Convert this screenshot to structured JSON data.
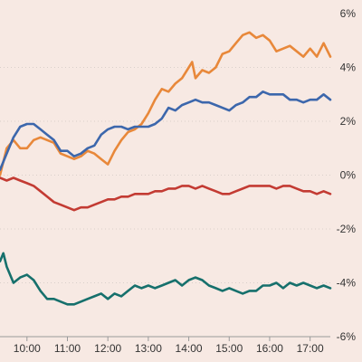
{
  "chart_data": {
    "type": "line",
    "title": "",
    "xlabel": "",
    "ylabel": "",
    "ylim": [
      -6,
      6
    ],
    "xlim": [
      "09:20",
      "17:30"
    ],
    "grid": true,
    "legend": "none",
    "y_ticks": [
      {
        "value": 6,
        "label": "6%"
      },
      {
        "value": 4,
        "label": "4%"
      },
      {
        "value": 2,
        "label": "2%"
      },
      {
        "value": 0,
        "label": "0%"
      },
      {
        "value": -2,
        "label": "-2%"
      },
      {
        "value": -4,
        "label": "-4%"
      },
      {
        "value": -6,
        "label": "-6%"
      }
    ],
    "x_ticks": [
      "10:00",
      "11:00",
      "12:00",
      "13:00",
      "14:00",
      "15:00",
      "16:00",
      "17:00"
    ],
    "series": [
      {
        "color": "#e8883a",
        "points": [
          [
            "09:20",
            0.0
          ],
          [
            "09:30",
            1.0
          ],
          [
            "09:40",
            1.3
          ],
          [
            "09:50",
            1.0
          ],
          [
            "10:00",
            1.0
          ],
          [
            "10:10",
            1.3
          ],
          [
            "10:20",
            1.4
          ],
          [
            "10:30",
            1.3
          ],
          [
            "10:40",
            1.2
          ],
          [
            "10:50",
            0.8
          ],
          [
            "11:00",
            0.7
          ],
          [
            "11:10",
            0.6
          ],
          [
            "11:20",
            0.7
          ],
          [
            "11:30",
            0.9
          ],
          [
            "11:40",
            0.8
          ],
          [
            "11:50",
            0.6
          ],
          [
            "12:00",
            0.4
          ],
          [
            "12:10",
            0.9
          ],
          [
            "12:20",
            1.3
          ],
          [
            "12:30",
            1.6
          ],
          [
            "12:40",
            1.7
          ],
          [
            "12:50",
            1.9
          ],
          [
            "13:00",
            2.3
          ],
          [
            "13:10",
            2.8
          ],
          [
            "13:20",
            3.2
          ],
          [
            "13:30",
            3.1
          ],
          [
            "13:40",
            3.4
          ],
          [
            "13:50",
            3.6
          ],
          [
            "14:00",
            4.0
          ],
          [
            "14:05",
            4.2
          ],
          [
            "14:10",
            3.6
          ],
          [
            "14:20",
            3.9
          ],
          [
            "14:30",
            3.8
          ],
          [
            "14:40",
            4.0
          ],
          [
            "14:50",
            4.5
          ],
          [
            "15:00",
            4.6
          ],
          [
            "15:10",
            4.9
          ],
          [
            "15:20",
            5.2
          ],
          [
            "15:30",
            5.3
          ],
          [
            "15:40",
            5.1
          ],
          [
            "15:50",
            5.2
          ],
          [
            "16:00",
            5.0
          ],
          [
            "16:10",
            4.6
          ],
          [
            "16:20",
            4.7
          ],
          [
            "16:30",
            4.8
          ],
          [
            "16:40",
            4.6
          ],
          [
            "16:50",
            4.4
          ],
          [
            "17:00",
            4.7
          ],
          [
            "17:10",
            4.4
          ],
          [
            "17:20",
            4.9
          ],
          [
            "17:30",
            4.4
          ]
        ]
      },
      {
        "color": "#3c67ac",
        "points": [
          [
            "09:20",
            0.2
          ],
          [
            "09:30",
            0.8
          ],
          [
            "09:40",
            1.4
          ],
          [
            "09:50",
            1.8
          ],
          [
            "10:00",
            1.9
          ],
          [
            "10:10",
            1.9
          ],
          [
            "10:20",
            1.7
          ],
          [
            "10:30",
            1.5
          ],
          [
            "10:40",
            1.3
          ],
          [
            "10:50",
            0.9
          ],
          [
            "11:00",
            0.9
          ],
          [
            "11:10",
            0.7
          ],
          [
            "11:20",
            0.8
          ],
          [
            "11:30",
            1.0
          ],
          [
            "11:40",
            1.1
          ],
          [
            "11:50",
            1.5
          ],
          [
            "12:00",
            1.7
          ],
          [
            "12:10",
            1.8
          ],
          [
            "12:20",
            1.8
          ],
          [
            "12:30",
            1.7
          ],
          [
            "12:40",
            1.8
          ],
          [
            "12:50",
            1.8
          ],
          [
            "13:00",
            1.8
          ],
          [
            "13:10",
            1.9
          ],
          [
            "13:20",
            2.1
          ],
          [
            "13:30",
            2.5
          ],
          [
            "13:40",
            2.4
          ],
          [
            "13:50",
            2.6
          ],
          [
            "14:00",
            2.7
          ],
          [
            "14:10",
            2.8
          ],
          [
            "14:20",
            2.7
          ],
          [
            "14:30",
            2.7
          ],
          [
            "14:40",
            2.6
          ],
          [
            "14:50",
            2.5
          ],
          [
            "15:00",
            2.4
          ],
          [
            "15:10",
            2.6
          ],
          [
            "15:20",
            2.7
          ],
          [
            "15:30",
            2.9
          ],
          [
            "15:40",
            2.9
          ],
          [
            "15:50",
            3.1
          ],
          [
            "16:00",
            3.0
          ],
          [
            "16:10",
            3.0
          ],
          [
            "16:20",
            3.0
          ],
          [
            "16:30",
            2.8
          ],
          [
            "16:40",
            2.8
          ],
          [
            "16:50",
            2.7
          ],
          [
            "17:00",
            2.8
          ],
          [
            "17:10",
            2.8
          ],
          [
            "17:20",
            3.0
          ],
          [
            "17:30",
            2.8
          ]
        ]
      },
      {
        "color": "#c33b33",
        "points": [
          [
            "09:20",
            -0.1
          ],
          [
            "09:30",
            -0.2
          ],
          [
            "09:40",
            -0.1
          ],
          [
            "09:50",
            -0.2
          ],
          [
            "10:00",
            -0.3
          ],
          [
            "10:10",
            -0.4
          ],
          [
            "10:20",
            -0.6
          ],
          [
            "10:30",
            -0.8
          ],
          [
            "10:40",
            -1.0
          ],
          [
            "10:50",
            -1.1
          ],
          [
            "11:00",
            -1.2
          ],
          [
            "11:10",
            -1.3
          ],
          [
            "11:20",
            -1.2
          ],
          [
            "11:30",
            -1.2
          ],
          [
            "11:40",
            -1.1
          ],
          [
            "11:50",
            -1.0
          ],
          [
            "12:00",
            -0.9
          ],
          [
            "12:10",
            -0.9
          ],
          [
            "12:20",
            -0.8
          ],
          [
            "12:30",
            -0.8
          ],
          [
            "12:40",
            -0.7
          ],
          [
            "12:50",
            -0.7
          ],
          [
            "13:00",
            -0.7
          ],
          [
            "13:10",
            -0.6
          ],
          [
            "13:20",
            -0.6
          ],
          [
            "13:30",
            -0.5
          ],
          [
            "13:40",
            -0.5
          ],
          [
            "13:50",
            -0.4
          ],
          [
            "14:00",
            -0.4
          ],
          [
            "14:10",
            -0.5
          ],
          [
            "14:20",
            -0.4
          ],
          [
            "14:30",
            -0.5
          ],
          [
            "14:40",
            -0.6
          ],
          [
            "14:50",
            -0.7
          ],
          [
            "15:00",
            -0.7
          ],
          [
            "15:10",
            -0.6
          ],
          [
            "15:20",
            -0.5
          ],
          [
            "15:30",
            -0.4
          ],
          [
            "15:40",
            -0.4
          ],
          [
            "15:50",
            -0.4
          ],
          [
            "16:00",
            -0.4
          ],
          [
            "16:10",
            -0.5
          ],
          [
            "16:20",
            -0.4
          ],
          [
            "16:30",
            -0.4
          ],
          [
            "16:40",
            -0.5
          ],
          [
            "16:50",
            -0.6
          ],
          [
            "17:00",
            -0.6
          ],
          [
            "17:10",
            -0.7
          ],
          [
            "17:20",
            -0.6
          ],
          [
            "17:30",
            -0.7
          ]
        ]
      },
      {
        "color": "#16706c",
        "points": [
          [
            "09:20",
            -3.2
          ],
          [
            "09:25",
            -2.9
          ],
          [
            "09:30",
            -3.4
          ],
          [
            "09:40",
            -4.0
          ],
          [
            "09:50",
            -3.8
          ],
          [
            "10:00",
            -3.7
          ],
          [
            "10:10",
            -3.9
          ],
          [
            "10:20",
            -4.3
          ],
          [
            "10:30",
            -4.6
          ],
          [
            "10:40",
            -4.6
          ],
          [
            "10:50",
            -4.7
          ],
          [
            "11:00",
            -4.8
          ],
          [
            "11:10",
            -4.8
          ],
          [
            "11:20",
            -4.7
          ],
          [
            "11:30",
            -4.6
          ],
          [
            "11:40",
            -4.5
          ],
          [
            "11:50",
            -4.4
          ],
          [
            "12:00",
            -4.6
          ],
          [
            "12:10",
            -4.4
          ],
          [
            "12:20",
            -4.5
          ],
          [
            "12:30",
            -4.3
          ],
          [
            "12:40",
            -4.1
          ],
          [
            "12:50",
            -4.2
          ],
          [
            "13:00",
            -4.1
          ],
          [
            "13:10",
            -4.2
          ],
          [
            "13:20",
            -4.1
          ],
          [
            "13:30",
            -4.0
          ],
          [
            "13:40",
            -3.9
          ],
          [
            "13:50",
            -4.1
          ],
          [
            "14:00",
            -3.9
          ],
          [
            "14:10",
            -3.8
          ],
          [
            "14:20",
            -3.9
          ],
          [
            "14:30",
            -4.1
          ],
          [
            "14:40",
            -4.2
          ],
          [
            "14:50",
            -4.3
          ],
          [
            "15:00",
            -4.2
          ],
          [
            "15:10",
            -4.3
          ],
          [
            "15:20",
            -4.4
          ],
          [
            "15:30",
            -4.3
          ],
          [
            "15:40",
            -4.3
          ],
          [
            "15:50",
            -4.1
          ],
          [
            "16:00",
            -4.1
          ],
          [
            "16:10",
            -4.0
          ],
          [
            "16:20",
            -4.2
          ],
          [
            "16:30",
            -4.0
          ],
          [
            "16:40",
            -4.1
          ],
          [
            "16:50",
            -4.0
          ],
          [
            "17:00",
            -4.1
          ],
          [
            "17:10",
            -4.2
          ],
          [
            "17:20",
            -4.1
          ],
          [
            "17:30",
            -4.2
          ]
        ]
      }
    ]
  }
}
